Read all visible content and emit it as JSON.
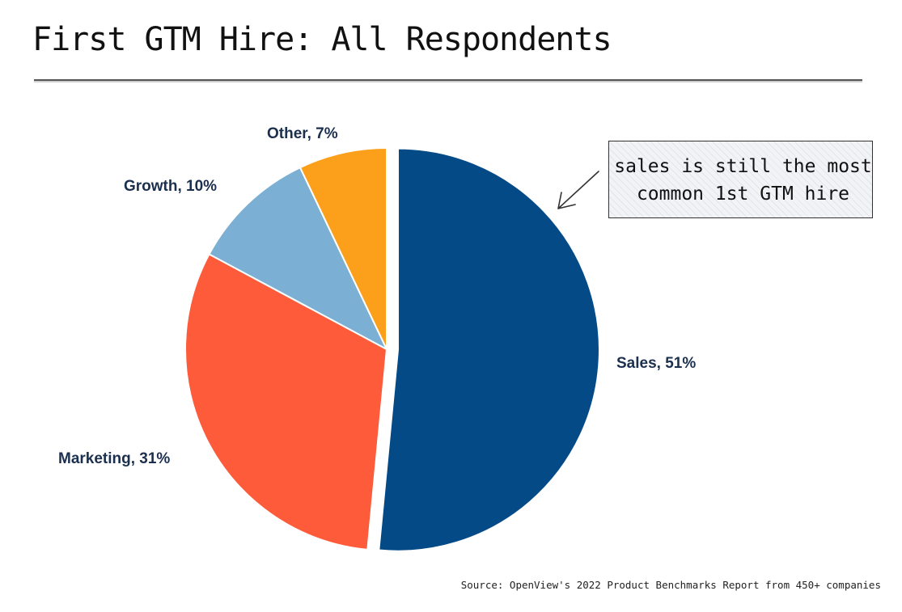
{
  "title": "First GTM Hire: All Respondents",
  "chart_data": {
    "type": "pie",
    "title": "First GTM Hire: All Respondents",
    "slices": [
      {
        "name": "Sales",
        "value": 51,
        "label": "Sales, 51%",
        "color": "#034a86"
      },
      {
        "name": "Marketing",
        "value": 31,
        "label": "Marketing, 31%",
        "color": "#fe5b3b"
      },
      {
        "name": "Growth",
        "value": 10,
        "label": "Growth, 10%",
        "color": "#7bafd4"
      },
      {
        "name": "Other",
        "value": 7,
        "label": "Other, 7%",
        "color": "#fc9f1a"
      }
    ],
    "annotations": [
      {
        "line1": "sales is still the most",
        "line2": "common 1st GTM hire"
      }
    ]
  },
  "source": "Source: OpenView's 2022 Product Benchmarks Report from 450+ companies"
}
